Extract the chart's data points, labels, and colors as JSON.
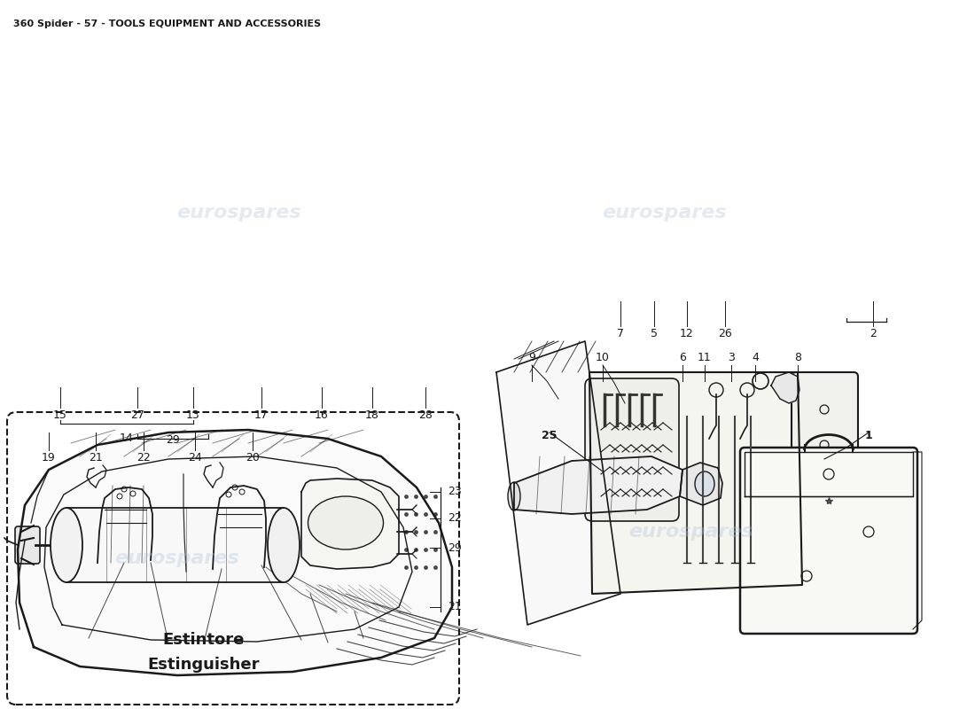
{
  "title": "360 Spider - 57 - TOOLS EQUIPMENT AND ACCESSORIES",
  "title_fontsize": 8,
  "background_color": "#ffffff",
  "watermark_text": "eurospares",
  "watermark_color": "#b0c4d8",
  "watermark_alpha": 0.35,
  "line_color": "#1a1a1a",
  "text_color": "#1a1a1a",
  "extinguisher_label_it": "Estintore",
  "extinguisher_label_en": "Estinguisher",
  "extinguisher_label_fontsize": 13
}
